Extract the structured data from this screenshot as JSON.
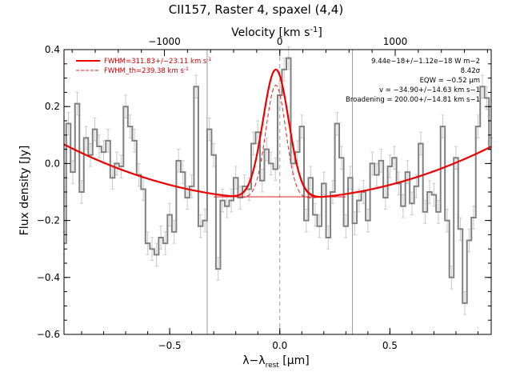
{
  "chart_data": {
    "type": "line",
    "title": "CII157, Raster 4, spaxel (4,4)",
    "xlabel": "λ−λ",
    "xlabel_sub": "rest",
    "xlabel_unit": " [μm]",
    "ylabel": "Flux density [Jy]",
    "top_xlabel": "Velocity [km s",
    "top_xlabel_sup": "-1",
    "top_xlabel_end": "]",
    "xlim": [
      -0.98,
      0.96
    ],
    "ylim": [
      -0.6,
      0.4
    ],
    "yticks": [
      -0.6,
      -0.4,
      -0.2,
      0.0,
      0.2,
      0.4
    ],
    "ytick_labels": [
      "−0.6",
      "−0.4",
      "−0.2",
      "0.0",
      "0.2",
      "0.4"
    ],
    "xticks": [
      -0.5,
      0.0,
      0.5
    ],
    "xtick_labels": [
      "−0.5",
      "0.0",
      "0.5"
    ],
    "top_ticks_velocity": [
      -1000,
      0,
      1000
    ],
    "top_tick_labels": [
      "−1000",
      "0",
      "1000"
    ],
    "velocity_to_wavelength_factor": 0.000524,
    "vertical_markers": [
      -0.33,
      0.0,
      0.33
    ],
    "legend": [
      {
        "label": "FWHM=311.83+/−23.11 km s",
        "sup": "-1",
        "style": "solid"
      },
      {
        "label": "FWHM_th=239.38 km s",
        "sup": "-1",
        "style": "dashed"
      }
    ],
    "annotations": [
      "9.44e−18+/−1.12e−18 W m−2",
      "8.42σ",
      "EQW = −0.52 μm",
      "v = −34.90+/−14.63 km s−1",
      "Broadening = 200.00+/−14.81 km s−1"
    ],
    "colors": {
      "data": "#808080",
      "errors": "#c8c8c8",
      "fit": "#ee0000",
      "fit_thin": "#dd2222",
      "markers": "#999999"
    },
    "series": [
      {
        "step": true,
        "x": [
          -0.98,
          -0.96,
          -0.94,
          -0.92,
          -0.9,
          -0.88,
          -0.86,
          -0.84,
          -0.82,
          -0.8,
          -0.78,
          -0.76,
          -0.74,
          -0.72,
          -0.7,
          -0.68,
          -0.66,
          -0.64,
          -0.62,
          -0.6,
          -0.58,
          -0.56,
          -0.54,
          -0.52,
          -0.5,
          -0.48,
          -0.46,
          -0.44,
          -0.42,
          -0.4,
          -0.38,
          -0.36,
          -0.34,
          -0.32,
          -0.3,
          -0.28,
          -0.26,
          -0.24,
          -0.22,
          -0.2,
          -0.18,
          -0.16,
          -0.14,
          -0.12,
          -0.1,
          -0.08,
          -0.06,
          -0.04,
          -0.02,
          0.0,
          0.02,
          0.04,
          0.06,
          0.08,
          0.1,
          0.12,
          0.14,
          0.16,
          0.18,
          0.2,
          0.22,
          0.24,
          0.26,
          0.28,
          0.3,
          0.32,
          0.34,
          0.36,
          0.38,
          0.4,
          0.42,
          0.44,
          0.46,
          0.48,
          0.5,
          0.52,
          0.54,
          0.56,
          0.58,
          0.6,
          0.62,
          0.64,
          0.66,
          0.68,
          0.7,
          0.72,
          0.74,
          0.76,
          0.78,
          0.8,
          0.82,
          0.84,
          0.86,
          0.88,
          0.9,
          0.92,
          0.94,
          0.96
        ],
        "y": [
          -0.28,
          0.14,
          -0.03,
          0.21,
          -0.1,
          0.09,
          0.03,
          0.12,
          0.06,
          0.04,
          0.08,
          -0.05,
          0.0,
          -0.01,
          0.2,
          0.13,
          0.08,
          -0.04,
          -0.09,
          -0.28,
          -0.3,
          -0.32,
          -0.26,
          -0.28,
          -0.18,
          -0.24,
          0.01,
          -0.03,
          -0.12,
          -0.08,
          0.27,
          -0.22,
          -0.2,
          0.12,
          0.03,
          -0.37,
          -0.13,
          -0.15,
          -0.13,
          -0.05,
          -0.12,
          -0.08,
          -0.09,
          0.07,
          0.11,
          -0.06,
          0.05,
          0.0,
          -0.02,
          0.24,
          0.33,
          0.37,
          0.0,
          0.04,
          0.13,
          -0.2,
          -0.05,
          -0.18,
          -0.22,
          -0.07,
          -0.26,
          -0.1,
          0.14,
          0.02,
          -0.22,
          -0.05,
          -0.21,
          -0.13,
          -0.1,
          -0.2,
          0.0,
          -0.04,
          0.01,
          -0.12,
          -0.01,
          0.02,
          -0.07,
          -0.15,
          -0.03,
          -0.14,
          -0.08,
          0.07,
          -0.17,
          -0.1,
          -0.11,
          -0.17,
          0.13,
          -0.2,
          -0.4,
          0.02,
          -0.23,
          -0.49,
          -0.27,
          -0.19,
          0.13,
          0.27,
          0.23,
          0.05
        ],
        "err": 0.04
      }
    ]
  }
}
